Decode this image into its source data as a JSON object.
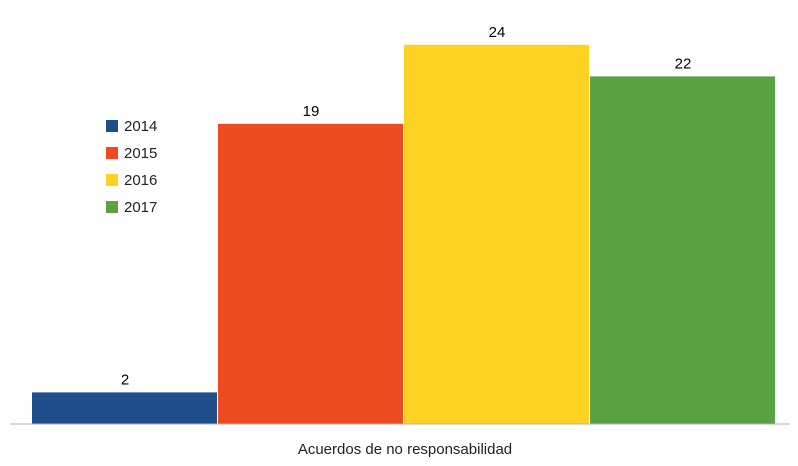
{
  "chart_data": {
    "type": "bar",
    "categories": [
      "Acuerdos de no responsabilidad"
    ],
    "series": [
      {
        "name": "2014",
        "values": [
          2
        ],
        "color": "#1f4e8c"
      },
      {
        "name": "2015",
        "values": [
          19
        ],
        "color": "#ee4b21"
      },
      {
        "name": "2016",
        "values": [
          24
        ],
        "color": "#fdd223"
      },
      {
        "name": "2017",
        "values": [
          22
        ],
        "color": "#5aa144"
      }
    ],
    "title": "",
    "xlabel": "",
    "ylabel": "",
    "ylim": [
      0,
      25
    ],
    "grid": false,
    "legend_position": "left"
  }
}
